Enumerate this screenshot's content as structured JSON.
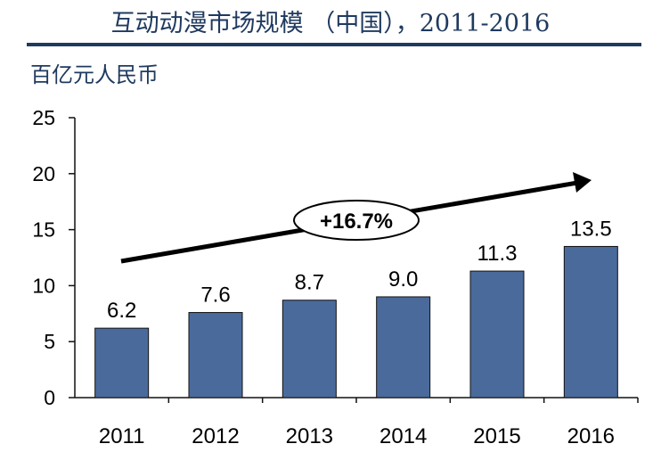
{
  "header": {
    "title": "互动动漫市场规模 （中国），2011-2016",
    "unit": "百亿元人民币"
  },
  "colors": {
    "bar": "#4a6a9b",
    "bar_stroke": "#111111",
    "title": "#1f3a5f"
  },
  "chart_data": {
    "type": "bar",
    "title": "互动动漫市场规模 （中国），2011-2016",
    "ylabel": "百亿元人民币",
    "xlabel": "",
    "categories": [
      "2011",
      "2012",
      "2013",
      "2014",
      "2015",
      "2016"
    ],
    "values": [
      6.2,
      7.6,
      8.7,
      9.0,
      11.3,
      13.5
    ],
    "value_labels": [
      "6.2",
      "7.6",
      "8.7",
      "9.0",
      "11.3",
      "13.5"
    ],
    "ylim": [
      0,
      25
    ],
    "yticks": [
      0,
      5,
      10,
      15,
      20,
      25
    ],
    "grid": false,
    "legend": "none",
    "annotation": {
      "label": "+16.7%",
      "type": "growth-arrow"
    }
  }
}
